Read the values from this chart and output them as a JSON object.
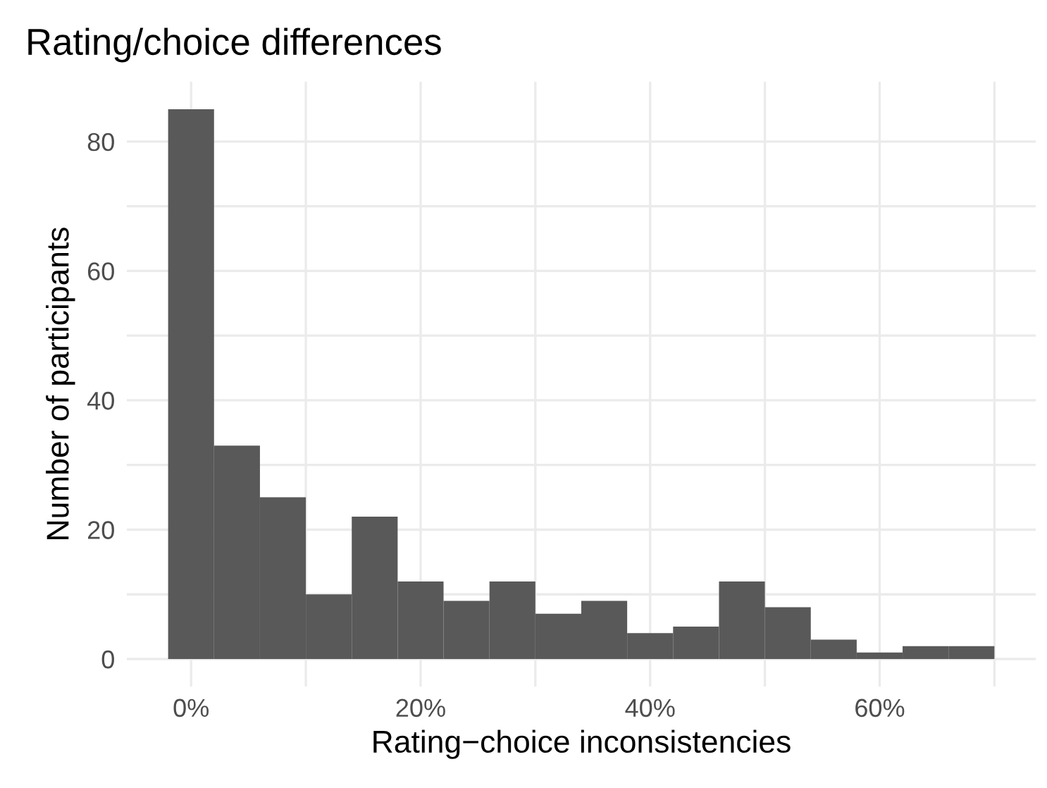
{
  "chart_data": {
    "type": "histogram",
    "title": "Rating/choice differences",
    "xlabel": "Rating−choice inconsistencies",
    "ylabel": "Number of participants",
    "bins": [
      -2,
      2,
      6,
      10,
      14,
      18,
      22,
      26,
      30,
      34,
      38,
      42,
      46,
      50,
      54,
      58,
      62,
      66,
      70
    ],
    "values": [
      85,
      33,
      25,
      10,
      22,
      12,
      9,
      12,
      7,
      9,
      4,
      5,
      12,
      8,
      3,
      1,
      2,
      2
    ],
    "color": "#595959",
    "xlim": [
      -5.6,
      73.6
    ],
    "ylim": [
      -4.25,
      89.25
    ],
    "xticks": [
      {
        "value": 0,
        "label": "0%"
      },
      {
        "value": 10,
        "label": null
      },
      {
        "value": 20,
        "label": "20%"
      },
      {
        "value": 30,
        "label": null
      },
      {
        "value": 40,
        "label": "40%"
      },
      {
        "value": 50,
        "label": null
      },
      {
        "value": 60,
        "label": "60%"
      },
      {
        "value": 70,
        "label": null
      }
    ],
    "yticks": [
      0,
      {
        "value": 10,
        "label": null
      },
      20,
      {
        "value": 30,
        "label": null
      },
      40,
      {
        "value": 50,
        "label": null
      },
      60,
      {
        "value": 70,
        "label": null
      },
      80
    ],
    "grid": true
  }
}
